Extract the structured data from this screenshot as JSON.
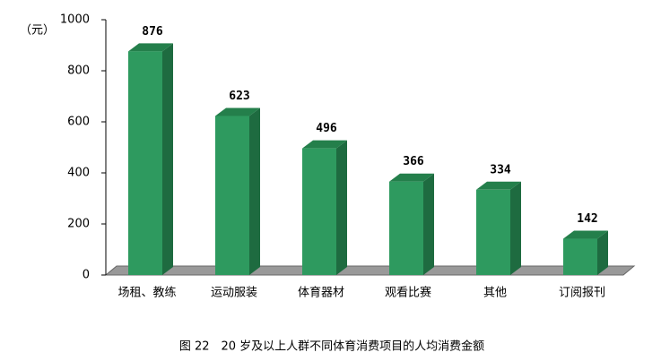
{
  "chart_data": {
    "type": "bar",
    "unit_label": "（元）",
    "caption": "图 22　20 岁及以上人群不同体育消费项目的人均消费金额",
    "categories": [
      "场租、教练",
      "运动服装",
      "体育器材",
      "观看比赛",
      "其他",
      "订阅报刊"
    ],
    "values": [
      876,
      623,
      496,
      366,
      334,
      142
    ],
    "color": "#2e9a5f",
    "ylim": [
      0,
      1000
    ],
    "yticks": [
      0,
      200,
      400,
      600,
      800,
      1000
    ]
  }
}
